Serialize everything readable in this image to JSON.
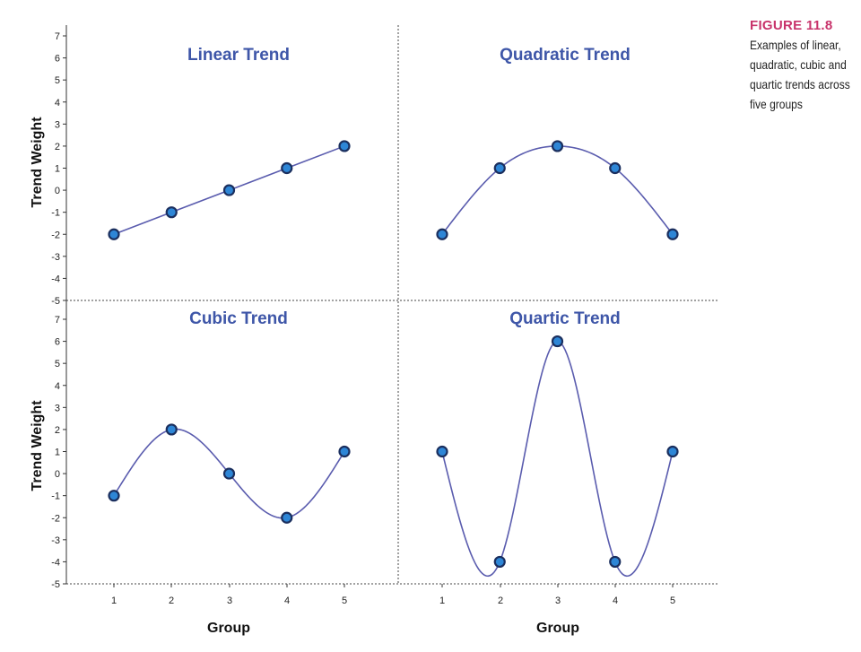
{
  "figure": {
    "label": "FIGURE 11.8",
    "caption": "Examples of linear, quadratic, cubic and quartic trends across five groups"
  },
  "colors": {
    "title": "#3e56a8",
    "line": "#5a5cae",
    "marker_fill": "#2e86d6",
    "marker_edge": "#1b2f5e",
    "caption_label": "#c8336b"
  },
  "axes": {
    "ylabel": "Trend Weight",
    "xlabel": "Group",
    "yticks": [
      "7",
      "6",
      "5",
      "4",
      "3",
      "2",
      "1",
      "0",
      "-1",
      "-2",
      "-3",
      "-4",
      "-5"
    ],
    "xticks": [
      "1",
      "2",
      "3",
      "4",
      "5"
    ]
  },
  "chart_data": [
    {
      "type": "line",
      "title": "Linear Trend",
      "smooth": false,
      "x": [
        1,
        2,
        3,
        4,
        5
      ],
      "values": [
        -2,
        -1,
        0,
        1,
        2
      ],
      "xlabel": "",
      "ylabel": "Trend Weight",
      "ylim": [
        -5,
        7
      ]
    },
    {
      "type": "line",
      "title": "Quadratic Trend",
      "smooth": true,
      "x": [
        1,
        2,
        3,
        4,
        5
      ],
      "values": [
        -2,
        1,
        2,
        1,
        -2
      ],
      "xlabel": "",
      "ylabel": "",
      "ylim": [
        -5,
        7
      ]
    },
    {
      "type": "line",
      "title": "Cubic Trend",
      "smooth": true,
      "x": [
        1,
        2,
        3,
        4,
        5
      ],
      "values": [
        -1,
        2,
        0,
        -2,
        1
      ],
      "xlabel": "Group",
      "ylabel": "Trend Weight",
      "ylim": [
        -5,
        7
      ]
    },
    {
      "type": "line",
      "title": "Quartic Trend",
      "smooth": true,
      "x": [
        1,
        2,
        3,
        4,
        5
      ],
      "values": [
        1,
        -4,
        6,
        -4,
        1
      ],
      "xlabel": "Group",
      "ylabel": "",
      "ylim": [
        -5,
        7
      ]
    }
  ]
}
